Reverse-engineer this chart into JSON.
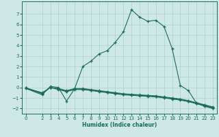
{
  "title": "",
  "xlabel": "Humidex (Indice chaleur)",
  "ylabel": "",
  "bg_color": "#cde8e5",
  "grid_color": "#aed0cc",
  "line_color": "#1a6b5a",
  "xlim": [
    -0.5,
    23.5
  ],
  "ylim": [
    -2.5,
    8.2
  ],
  "yticks": [
    -2,
    -1,
    0,
    1,
    2,
    3,
    4,
    5,
    6,
    7
  ],
  "xticks": [
    0,
    2,
    3,
    4,
    5,
    6,
    7,
    8,
    9,
    10,
    11,
    12,
    13,
    14,
    15,
    16,
    17,
    18,
    19,
    20,
    21,
    22,
    23
  ],
  "lines": [
    {
      "x": [
        0,
        2,
        3,
        4,
        5,
        6,
        7,
        8,
        9,
        10,
        11,
        12,
        13,
        14,
        15,
        16,
        17,
        18,
        19,
        20,
        21,
        22,
        23
      ],
      "y": [
        -0.1,
        -0.7,
        0.1,
        0.0,
        -1.3,
        -0.1,
        2.0,
        2.5,
        3.2,
        3.5,
        4.3,
        5.3,
        7.4,
        6.7,
        6.3,
        6.4,
        5.8,
        3.7,
        0.2,
        -0.3,
        -1.5,
        -1.8,
        -2.0
      ]
    },
    {
      "x": [
        0,
        2,
        3,
        4,
        5,
        6,
        7,
        8,
        9,
        10,
        11,
        12,
        13,
        14,
        15,
        16,
        17,
        18,
        19,
        20,
        21,
        22,
        23
      ],
      "y": [
        -0.05,
        -0.6,
        0.0,
        -0.2,
        -0.4,
        -0.2,
        -0.2,
        -0.3,
        -0.4,
        -0.5,
        -0.6,
        -0.7,
        -0.75,
        -0.8,
        -0.85,
        -0.9,
        -1.0,
        -1.1,
        -1.2,
        -1.35,
        -1.55,
        -1.75,
        -1.95
      ]
    },
    {
      "x": [
        0,
        2,
        3,
        4,
        5,
        6,
        7,
        8,
        9,
        10,
        11,
        12,
        13,
        14,
        15,
        16,
        17,
        18,
        19,
        20,
        21,
        22,
        23
      ],
      "y": [
        -0.05,
        -0.55,
        0.0,
        -0.15,
        -0.35,
        -0.15,
        -0.15,
        -0.25,
        -0.35,
        -0.45,
        -0.55,
        -0.65,
        -0.7,
        -0.75,
        -0.8,
        -0.85,
        -0.95,
        -1.05,
        -1.15,
        -1.3,
        -1.5,
        -1.7,
        -1.9
      ]
    },
    {
      "x": [
        0,
        2,
        3,
        4,
        5,
        6,
        7,
        8,
        9,
        10,
        11,
        12,
        13,
        14,
        15,
        16,
        17,
        18,
        19,
        20,
        21,
        22,
        23
      ],
      "y": [
        -0.05,
        -0.5,
        0.0,
        -0.1,
        -0.3,
        -0.1,
        -0.1,
        -0.2,
        -0.3,
        -0.4,
        -0.5,
        -0.6,
        -0.65,
        -0.7,
        -0.75,
        -0.8,
        -0.9,
        -1.0,
        -1.1,
        -1.25,
        -1.45,
        -1.65,
        -1.85
      ]
    }
  ]
}
